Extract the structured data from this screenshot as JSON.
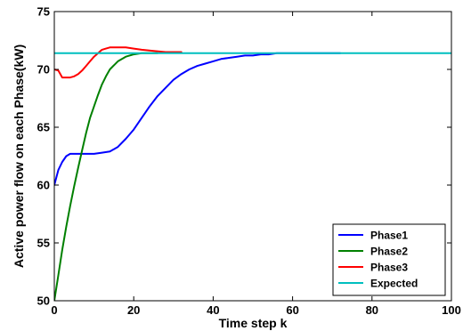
{
  "chart_data": {
    "type": "line",
    "title": "",
    "xlabel": "Time step k",
    "ylabel": "Active power flow on each Phase(kW)",
    "xlim": [
      0,
      100
    ],
    "ylim": [
      50,
      75
    ],
    "xticks": [
      0,
      20,
      40,
      60,
      80,
      100
    ],
    "yticks": [
      50,
      55,
      60,
      65,
      70,
      75
    ],
    "xtick_labels": [
      "0",
      "20",
      "40",
      "60",
      "80",
      "100"
    ],
    "ytick_labels": [
      "50",
      "55",
      "60",
      "65",
      "70",
      "75"
    ],
    "grid": false,
    "legend_position": "bottom-right",
    "series": [
      {
        "name": "Phase1",
        "color": "#0000ff",
        "x": [
          0,
          1,
          2,
          3,
          4,
          5,
          6,
          8,
          10,
          12,
          14,
          16,
          18,
          20,
          22,
          24,
          26,
          28,
          30,
          32,
          34,
          36,
          38,
          40,
          42,
          44,
          46,
          48,
          50,
          52,
          54,
          56,
          58,
          60,
          62,
          64,
          66,
          68,
          70,
          72
        ],
        "y": [
          60.0,
          61.3,
          62.0,
          62.5,
          62.7,
          62.7,
          62.7,
          62.7,
          62.7,
          62.8,
          62.9,
          63.3,
          64.0,
          64.8,
          65.8,
          66.8,
          67.7,
          68.4,
          69.1,
          69.6,
          70.0,
          70.3,
          70.5,
          70.7,
          70.9,
          71.0,
          71.1,
          71.2,
          71.2,
          71.3,
          71.3,
          71.4,
          71.4,
          71.4,
          71.4,
          71.4,
          71.4,
          71.4,
          71.4,
          71.4
        ]
      },
      {
        "name": "Phase2",
        "color": "#008000",
        "x": [
          0,
          1,
          2,
          3,
          4,
          5,
          6,
          7,
          8,
          9,
          10,
          11,
          12,
          13,
          14,
          16,
          18,
          20,
          22,
          24,
          26
        ],
        "y": [
          50.0,
          52.2,
          54.4,
          56.4,
          58.2,
          59.9,
          61.5,
          63.0,
          64.5,
          65.8,
          66.8,
          67.8,
          68.7,
          69.4,
          70.0,
          70.7,
          71.1,
          71.3,
          71.4,
          71.4,
          71.4
        ]
      },
      {
        "name": "Phase3",
        "color": "#ff0000",
        "x": [
          0,
          1,
          2,
          3,
          4,
          5,
          6,
          7,
          8,
          9,
          10,
          11,
          12,
          13,
          14,
          15,
          16,
          18,
          20,
          22,
          25,
          28,
          32
        ],
        "y": [
          70.0,
          69.9,
          69.3,
          69.3,
          69.3,
          69.4,
          69.6,
          69.9,
          70.3,
          70.7,
          71.1,
          71.4,
          71.7,
          71.8,
          71.9,
          71.9,
          71.9,
          71.9,
          71.8,
          71.7,
          71.6,
          71.5,
          71.5
        ]
      },
      {
        "name": "Expected",
        "color": "#00bfbf",
        "x": [
          0,
          100
        ],
        "y": [
          71.4,
          71.4
        ]
      }
    ]
  }
}
